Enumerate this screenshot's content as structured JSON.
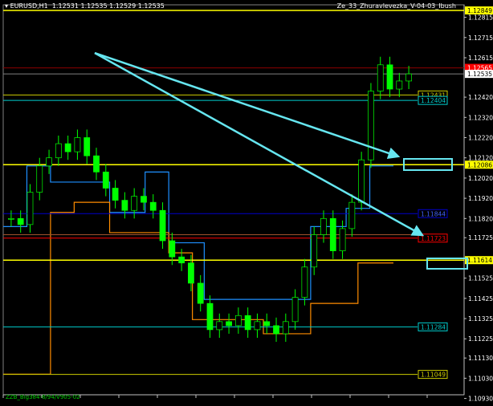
{
  "header": {
    "symbol": "EURUSD,H1",
    "ohlc": "1.12531 1.12535 1.12529 1.12535",
    "indicator_label": "Ze_33_Zhuravlevezka_V-04-03_Ibush"
  },
  "footer": {
    "indicator_label": "ZZB_Big384-8/94/V905-02"
  },
  "chart_data": {
    "type": "candlestick",
    "ylim": [
      1.1093,
      1.1289
    ],
    "y_ticks": [
      "1.12815",
      "1.12715",
      "1.12615",
      "1.12420",
      "1.12320",
      "1.12220",
      "1.12120",
      "1.12020",
      "1.11920",
      "1.11820",
      "1.11725",
      "1.11525",
      "1.11425",
      "1.11325",
      "1.11225",
      "1.11130",
      "1.11030",
      "1.10930"
    ],
    "closes": [
      1.1182,
      1.1179,
      1.1195,
      1.1208,
      1.1212,
      1.1219,
      1.1215,
      1.1222,
      1.1213,
      1.1205,
      1.1197,
      1.1191,
      1.1186,
      1.1193,
      1.119,
      1.1186,
      1.1171,
      1.1163,
      1.116,
      1.115,
      1.114,
      1.1127,
      1.1131,
      1.1129,
      1.1134,
      1.1127,
      1.1131,
      1.1129,
      1.1125,
      1.1131,
      1.1143,
      1.1158,
      1.1174,
      1.1182,
      1.1166,
      1.1177,
      1.119,
      1.1211,
      1.1245,
      1.1258,
      1.1246,
      1.125,
      1.12535
    ],
    "hlines": [
      {
        "price": 1.12849,
        "label": "1.12849",
        "color": "#ffff00",
        "tag": "axis"
      },
      {
        "price": 1.12565,
        "label": "1.12565",
        "color": "#8b0000",
        "tag": "axis-red"
      },
      {
        "price": 1.12535,
        "label": "1.12535",
        "color": "#808080",
        "tag": "axis-white"
      },
      {
        "price": 1.12431,
        "label": "1.12431",
        "color": "#cccc00",
        "tag": "box"
      },
      {
        "price": 1.12404,
        "label": "1.12404",
        "color": "#00cccc",
        "tag": "box"
      },
      {
        "price": 1.12086,
        "label": "1.12086",
        "color": "#ffff00",
        "tag": "axis"
      },
      {
        "price": 1.11844,
        "label": "1.11844",
        "color": "#0000cc",
        "tag": "box"
      },
      {
        "price": 1.1174,
        "label": "",
        "color": "#a0522d",
        "tag": "line"
      },
      {
        "price": 1.11723,
        "label": "1.11723",
        "color": "#ff0000",
        "tag": "box"
      },
      {
        "price": 1.11614,
        "label": "1.11614",
        "color": "#ffff00",
        "tag": "axis"
      },
      {
        "price": 1.11284,
        "label": "1.11284",
        "color": "#00cccc",
        "tag": "box"
      },
      {
        "price": 1.11049,
        "label": "1.11049",
        "color": "#cccc00",
        "tag": "box"
      }
    ],
    "step_blue": [
      1.1178,
      1.1178,
      1.1208,
      1.1208,
      1.12,
      1.12,
      1.12,
      1.12,
      1.12,
      1.1185,
      1.1185,
      1.1185,
      1.1205,
      1.1205,
      1.117,
      1.117,
      1.117,
      1.1142,
      1.1142,
      1.1142,
      1.1142,
      1.1142,
      1.1142,
      1.1142,
      1.1142,
      1.1142,
      1.1178,
      1.1178,
      1.1178,
      1.1187,
      1.1187,
      1.1208,
      1.1208
    ],
    "step_orange": [
      1.1105,
      1.1105,
      1.1105,
      1.1105,
      1.1185,
      1.1185,
      1.119,
      1.119,
      1.119,
      1.1175,
      1.1175,
      1.1175,
      1.1175,
      1.1175,
      1.1165,
      1.1165,
      1.1132,
      1.1132,
      1.1132,
      1.1132,
      1.1132,
      1.1132,
      1.1125,
      1.1125,
      1.1125,
      1.1125,
      1.114,
      1.114,
      1.114,
      1.114,
      1.116,
      1.116,
      1.116
    ],
    "trendlines_color": "#66e6f0",
    "colors": {
      "bull": "#00ff00",
      "bear": "#00ff00",
      "grid": "#404040",
      "axis": "#c0c0c0"
    }
  }
}
